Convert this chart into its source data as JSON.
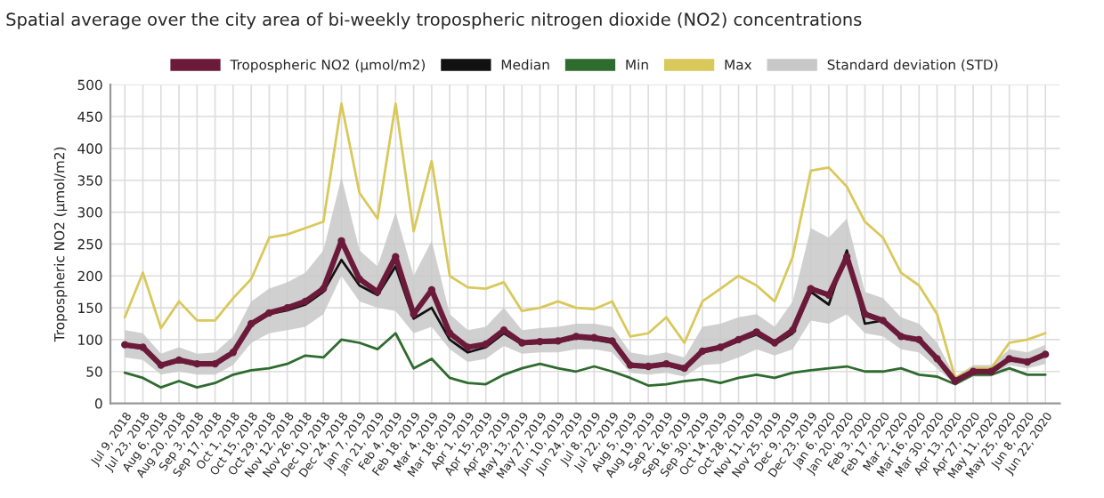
{
  "chart_data": {
    "type": "line",
    "title": "Spatial average over the city area of bi-weekly tropospheric nitrogen dioxide (NO2) concentrations",
    "ylabel": "Tropospheric NO2 (μmol/m2)",
    "categories": [
      "Jul 9, 2018",
      "Jul 23, 2018",
      "Aug 6, 2018",
      "Aug 20, 2018",
      "Sep 3, 2018",
      "Sep 17, 2018",
      "Oct 1, 2018",
      "Oct 15, 2018",
      "Oct 29, 2018",
      "Nov 12, 2018",
      "Nov 26, 2018",
      "Dec 10, 2018",
      "Dec 24, 2018",
      "Jan 7, 2019",
      "Jan 21, 2019",
      "Feb 4, 2019",
      "Feb 18, 2019",
      "Mar 4, 2019",
      "Mar 18, 2019",
      "Apr 1, 2019",
      "Apr 15, 2019",
      "Apr 29, 2019",
      "May 13, 2019",
      "May 27, 2019",
      "Jun 10, 2019",
      "Jun 24, 2019",
      "Jul 8, 2019",
      "Jul 22, 2019",
      "Aug 5, 2019",
      "Aug 19, 2019",
      "Sep 2, 2019",
      "Sep 16, 2019",
      "Sep 30, 2019",
      "Oct 14, 2019",
      "Oct 28, 2019",
      "Nov 11, 2019",
      "Nov 25, 2019",
      "Dec 9, 2019",
      "Dec 23, 2019",
      "Jan 6, 2020",
      "Jan 20, 2020",
      "Feb 3, 2020",
      "Feb 17, 2020",
      "Mar 2, 2020",
      "Mar 16, 2020",
      "Mar 30, 2020",
      "Apr 13, 2020",
      "Apr 27, 2020",
      "May 11, 2020",
      "May 25, 2020",
      "Jun 8, 2020",
      "Jun 22, 2020"
    ],
    "series": [
      {
        "name": "Max",
        "color": "#d9c85a",
        "values": [
          135,
          205,
          118,
          160,
          130,
          130,
          165,
          195,
          260,
          265,
          275,
          285,
          470,
          330,
          290,
          470,
          270,
          380,
          200,
          182,
          180,
          190,
          145,
          150,
          160,
          150,
          148,
          160,
          105,
          110,
          135,
          95,
          160,
          180,
          200,
          185,
          160,
          230,
          365,
          370,
          340,
          285,
          260,
          205,
          185,
          140,
          40,
          55,
          55,
          95,
          100,
          110
        ]
      },
      {
        "name": "Min",
        "color": "#2e6b2e",
        "values": [
          48,
          40,
          25,
          35,
          25,
          32,
          45,
          52,
          55,
          62,
          75,
          72,
          100,
          95,
          85,
          110,
          55,
          70,
          40,
          32,
          30,
          45,
          55,
          62,
          55,
          50,
          58,
          50,
          40,
          28,
          30,
          35,
          38,
          32,
          40,
          45,
          40,
          48,
          52,
          55,
          58,
          50,
          50,
          55,
          45,
          42,
          30,
          45,
          45,
          55,
          45,
          45
        ]
      },
      {
        "name": "Median",
        "color": "#111111",
        "values": [
          90,
          86,
          58,
          66,
          60,
          60,
          78,
          122,
          140,
          146,
          155,
          175,
          225,
          185,
          170,
          215,
          133,
          150,
          100,
          80,
          88,
          110,
          93,
          95,
          96,
          102,
          100,
          95,
          58,
          56,
          60,
          53,
          80,
          86,
          98,
          108,
          92,
          110,
          175,
          155,
          240,
          125,
          130,
          103,
          98,
          68,
          34,
          49,
          49,
          68,
          64,
          75
        ]
      },
      {
        "name": "Tropospheric NO2 (μmol/m2)",
        "color": "#6b1a3a",
        "marker": "circle",
        "lower": [
          72,
          68,
          45,
          50,
          45,
          45,
          60,
          95,
          110,
          115,
          120,
          140,
          200,
          160,
          150,
          145,
          110,
          120,
          85,
          65,
          70,
          90,
          78,
          80,
          80,
          85,
          85,
          80,
          48,
          45,
          48,
          42,
          60,
          62,
          72,
          85,
          75,
          85,
          130,
          125,
          140,
          110,
          105,
          85,
          80,
          55,
          30,
          42,
          42,
          60,
          55,
          62
        ],
        "upper": [
          115,
          110,
          78,
          88,
          78,
          80,
          105,
          160,
          180,
          190,
          205,
          240,
          355,
          240,
          215,
          300,
          200,
          255,
          140,
          115,
          120,
          150,
          115,
          118,
          120,
          125,
          125,
          120,
          80,
          75,
          80,
          72,
          120,
          125,
          135,
          140,
          120,
          160,
          275,
          260,
          290,
          175,
          165,
          135,
          125,
          95,
          42,
          60,
          60,
          85,
          80,
          92
        ],
        "values": [
          92,
          88,
          60,
          68,
          62,
          62,
          80,
          125,
          142,
          150,
          160,
          180,
          255,
          195,
          175,
          230,
          140,
          178,
          110,
          88,
          93,
          115,
          95,
          97,
          98,
          105,
          103,
          98,
          60,
          58,
          62,
          55,
          82,
          88,
          100,
          112,
          95,
          115,
          180,
          170,
          230,
          140,
          130,
          105,
          100,
          70,
          35,
          50,
          50,
          70,
          65,
          77
        ]
      }
    ],
    "annotations": [
      "Standard deviation (STD)"
    ],
    "ylim": [
      0,
      500
    ],
    "yticks": [
      0,
      50,
      100,
      150,
      200,
      250,
      300,
      350,
      400,
      450,
      500
    ],
    "grid": true,
    "legend": "top"
  }
}
